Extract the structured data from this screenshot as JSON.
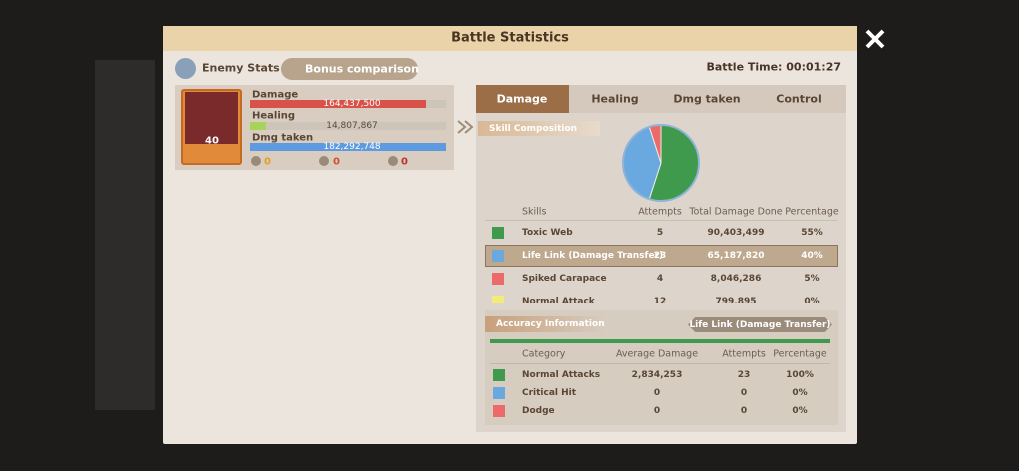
{
  "header": {
    "title": "Battle Statistics"
  },
  "toolbar": {
    "enemy_stats": "Enemy Stats",
    "bonus_comparison": "Bonus comparison",
    "battle_time": "Battle Time: 00:01:27"
  },
  "hero": {
    "level": "40",
    "stats": [
      {
        "label": "Damage",
        "value": "164,437,500"
      },
      {
        "label": "Healing",
        "value": "14,807,867"
      },
      {
        "label": "Dmg taken",
        "value": "182,292,748"
      }
    ],
    "counters": [
      "0",
      "0",
      "0"
    ]
  },
  "tabs": [
    "Damage",
    "Healing",
    "Dmg taken",
    "Control"
  ],
  "skills": {
    "section": "Skill Composition",
    "columns": [
      "Skills",
      "Attempts",
      "Total Damage Done",
      "Percentage"
    ],
    "rows": [
      {
        "name": "Toxic Web",
        "attempts": "5",
        "damage": "90,403,499",
        "percentage": "55%",
        "color": "#3f9a4e"
      },
      {
        "name": "Life Link (Damage Transfer)",
        "attempts": "23",
        "damage": "65,187,820",
        "percentage": "40%",
        "color": "#6aa9e0"
      },
      {
        "name": "Spiked Carapace",
        "attempts": "4",
        "damage": "8,046,286",
        "percentage": "5%",
        "color": "#ec6a6a"
      },
      {
        "name": "Normal Attack",
        "attempts": "12",
        "damage": "799,895",
        "percentage": "0%",
        "color": "#f4ec78"
      }
    ]
  },
  "accuracy": {
    "section": "Accuracy Information",
    "selected": "Life Link (Damage Transfer)",
    "columns": [
      "Category",
      "Average Damage",
      "Attempts",
      "Percentage"
    ],
    "rows": [
      {
        "name": "Normal Attacks",
        "average": "2,834,253",
        "attempts": "23",
        "percentage": "100%",
        "color": "#3f9a4e"
      },
      {
        "name": "Critical Hit",
        "average": "0",
        "attempts": "0",
        "percentage": "0%",
        "color": "#6aa9e0"
      },
      {
        "name": "Dodge",
        "average": "0",
        "attempts": "0",
        "percentage": "0%",
        "color": "#ec6a6a"
      }
    ]
  }
}
